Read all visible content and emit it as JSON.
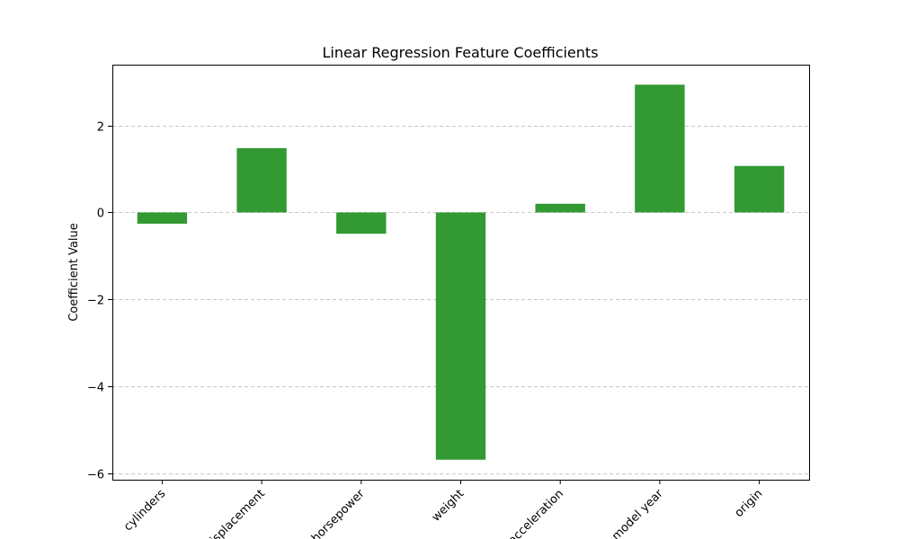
{
  "chart_data": {
    "type": "bar",
    "title": "Linear Regression Feature Coefficients",
    "xlabel": "",
    "ylabel": "Coefficient Value",
    "categories": [
      "cylinders",
      "displacement",
      "horsepower",
      "weight",
      "acceleration",
      "model year",
      "origin"
    ],
    "values": [
      -0.26,
      1.48,
      -0.49,
      -5.69,
      0.2,
      2.94,
      1.07
    ],
    "ylim": [
      -6.15,
      3.4
    ],
    "yticks": [
      -6,
      -4,
      -2,
      0,
      2
    ],
    "ytick_labels": [
      "−6",
      "−4",
      "−2",
      "0",
      "2"
    ],
    "grid": "y-dashed",
    "bar_color": "#339933"
  }
}
